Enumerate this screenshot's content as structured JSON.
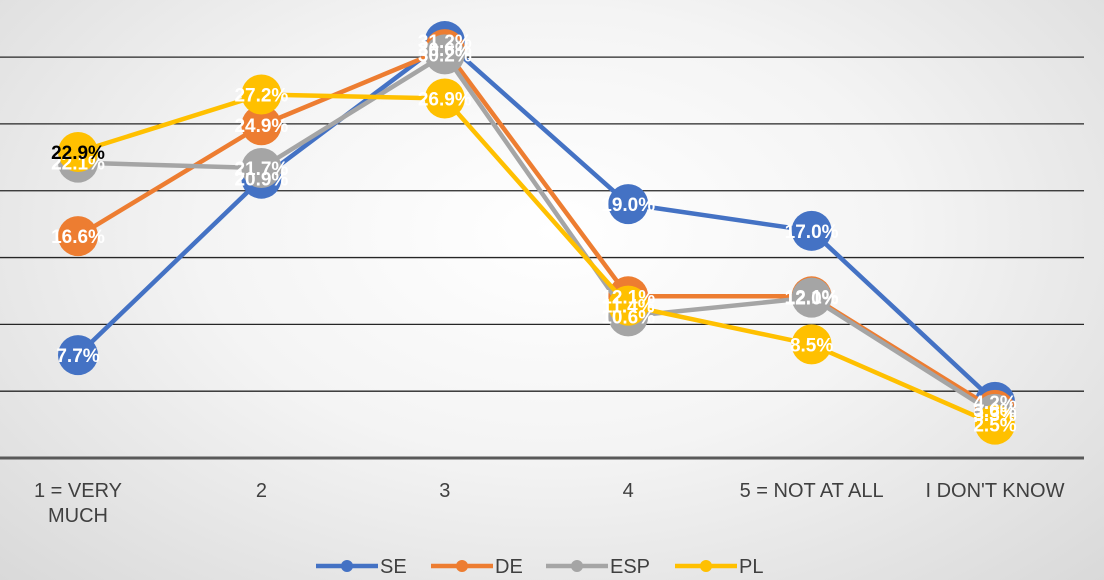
{
  "chart_data": {
    "type": "line",
    "categories": [
      "1 = VERY MUCH",
      "2",
      "3",
      "4",
      "5 = NOT AT ALL",
      "I DON'T KNOW"
    ],
    "category_lines": [
      [
        "1 = VERY",
        "MUCH"
      ],
      [
        "2"
      ],
      [
        "3"
      ],
      [
        "4"
      ],
      [
        "5 = NOT AT ALL"
      ],
      [
        "I DON'T KNOW"
      ]
    ],
    "ylim": [
      0,
      33
    ],
    "grid": true,
    "legend_position": "bottom",
    "series": [
      {
        "name": "SE",
        "color": "#4472C4",
        "values": [
          7.7,
          20.9,
          31.2,
          19.0,
          17.0,
          4.2
        ],
        "labels": [
          "7.7%",
          "20.9%",
          "31.2%",
          "19.0%",
          "17.0%",
          "4.2%"
        ]
      },
      {
        "name": "DE",
        "color": "#ED7D31",
        "values": [
          16.6,
          24.9,
          30.6,
          12.1,
          12.1,
          3.6
        ],
        "labels": [
          "16.6%",
          "24.9%",
          "30.6%",
          "12.1%",
          "12.1%",
          "3.6%"
        ]
      },
      {
        "name": "ESP",
        "color": "#A5A5A5",
        "values": [
          22.1,
          21.7,
          30.2,
          10.6,
          12.0,
          3.3
        ],
        "labels": [
          "22.1%",
          "21.7%",
          "30.2%",
          "10.6%",
          "12.0%",
          "3.3%"
        ]
      },
      {
        "name": "PL",
        "color": "#FFC000",
        "values": [
          22.9,
          27.2,
          26.9,
          11.4,
          8.5,
          2.5
        ],
        "labels": [
          "22.9%",
          "27.2%",
          "26.9%",
          "11.4%",
          "8.5%",
          "2.5%"
        ]
      }
    ]
  }
}
